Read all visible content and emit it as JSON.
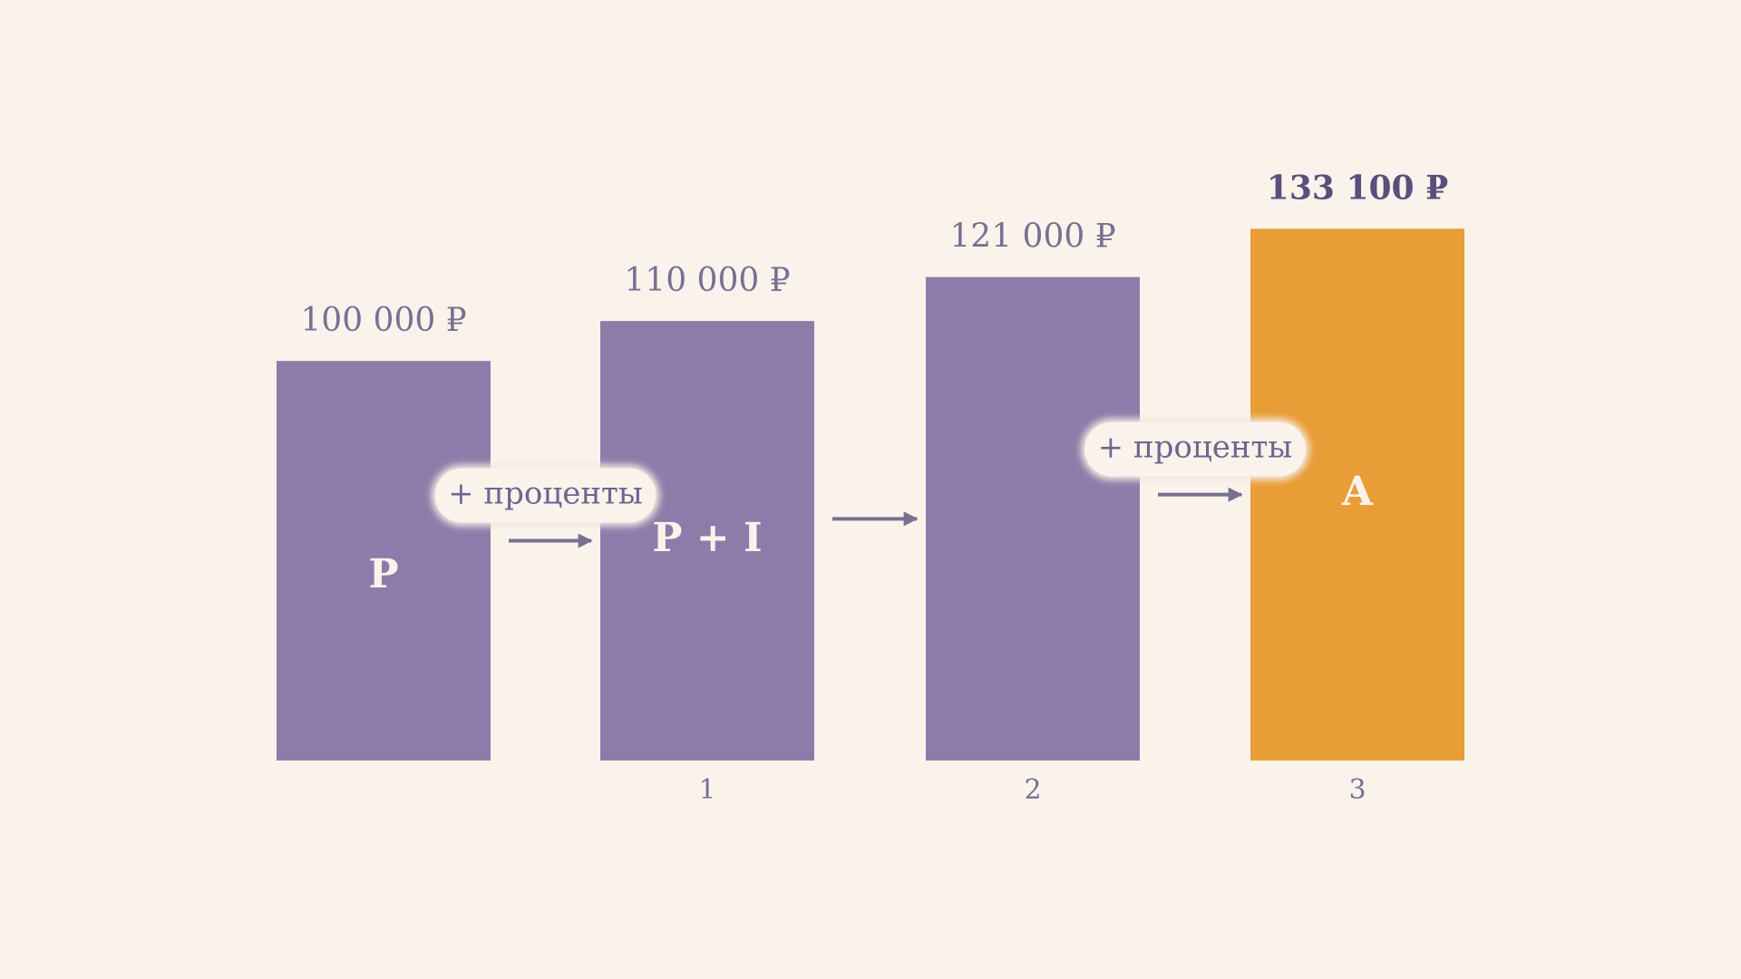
{
  "chart_data": {
    "type": "bar",
    "categories": [
      null,
      "1",
      "2",
      "3"
    ],
    "values": [
      100000,
      110000,
      121000,
      133100
    ],
    "value_labels": [
      "100 000 ₽",
      "110 000 ₽",
      "121 000 ₽",
      "133 100 ₽"
    ],
    "bar_labels": [
      "P",
      "P + I",
      null,
      "A"
    ],
    "colors": [
      "#8f7ba9",
      "#8f7ba9",
      "#8f7ba9",
      "#e89d36"
    ],
    "annotations": [
      "+ проценты",
      "+ проценты"
    ]
  }
}
